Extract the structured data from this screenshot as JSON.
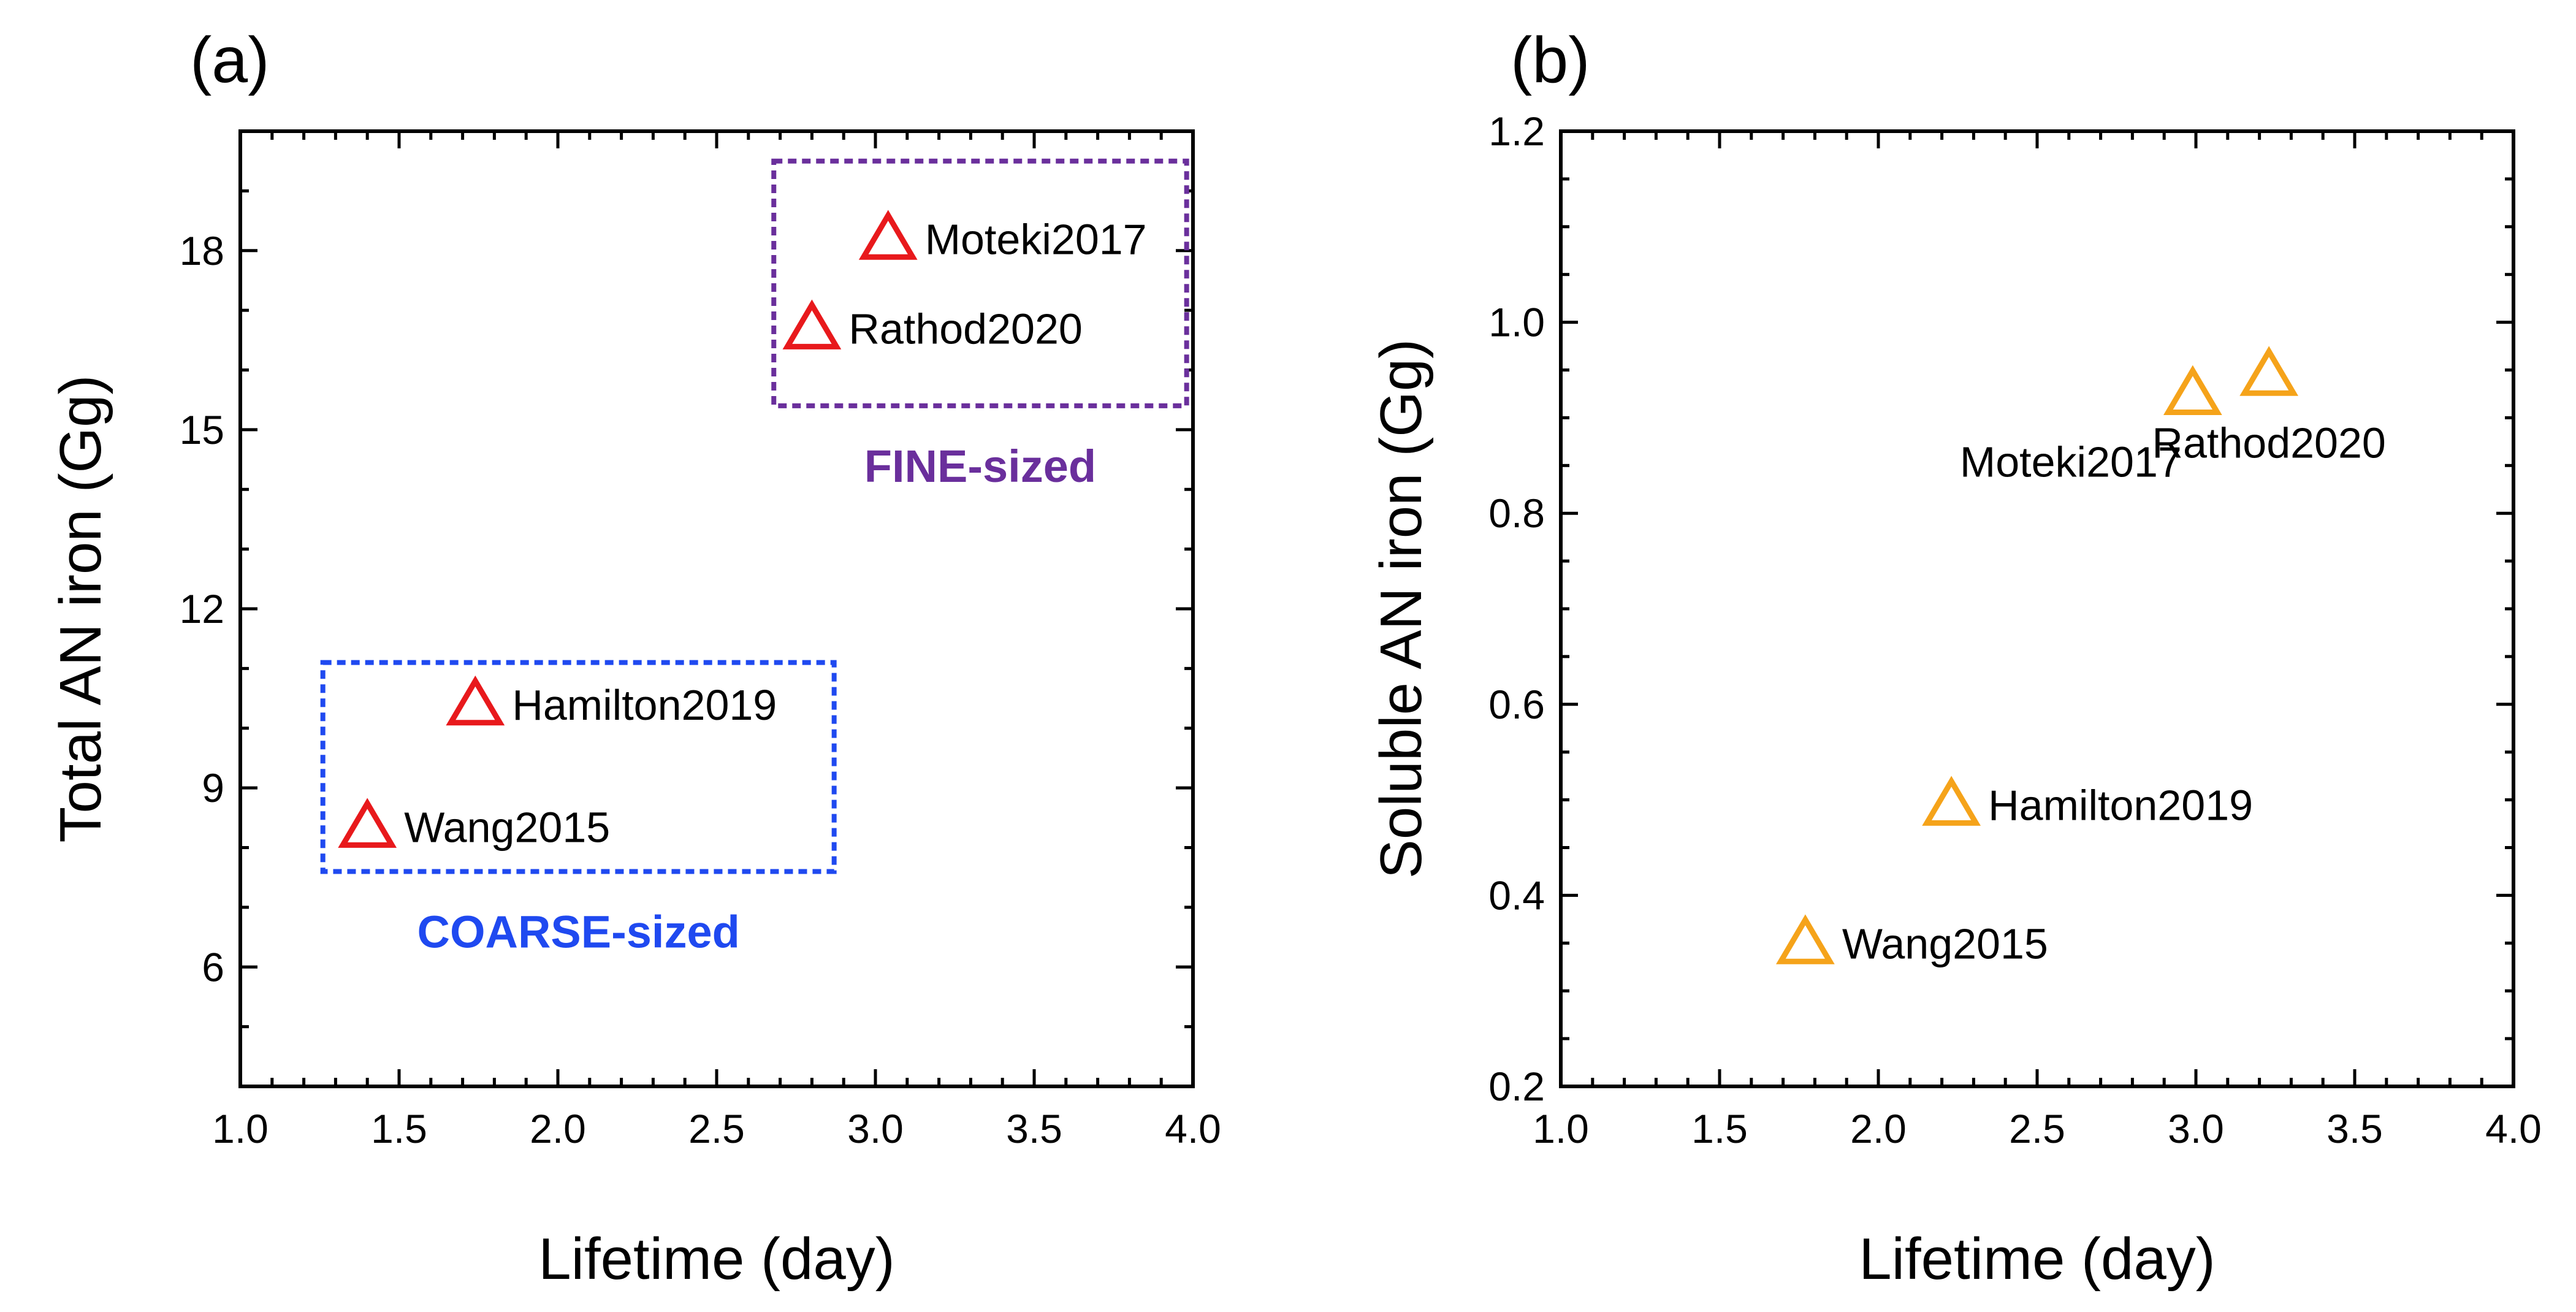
{
  "chart_data": [
    {
      "type": "scatter",
      "panel_label": "(a)",
      "xlabel": "Lifetime (day)",
      "ylabel": "Total AN iron (Gg)",
      "xlim": [
        1.0,
        4.0
      ],
      "ylim": [
        4.0,
        20.0
      ],
      "xticks": [
        1.0,
        1.5,
        2.0,
        2.5,
        3.0,
        3.5,
        4.0
      ],
      "xtick_labels": [
        "1.0",
        "1.5",
        "2.0",
        "2.5",
        "3.0",
        "3.5",
        "4.0"
      ],
      "yticks": [
        6,
        9,
        12,
        15,
        18
      ],
      "ytick_labels": [
        "6",
        "9",
        "12",
        "15",
        "18"
      ],
      "marker": "open-triangle",
      "marker_color": "#e8191c",
      "points": [
        {
          "label": "Moteki2017",
          "x": 3.04,
          "y": 18.2,
          "label_pos": "right"
        },
        {
          "label": "Rathod2020",
          "x": 2.8,
          "y": 16.7,
          "label_pos": "right"
        },
        {
          "label": "Hamilton2019",
          "x": 1.74,
          "y": 10.4,
          "label_pos": "right"
        },
        {
          "label": "Wang2015",
          "x": 1.4,
          "y": 8.35,
          "label_pos": "right"
        }
      ],
      "groups": [
        {
          "label": "FINE-sized",
          "color": "#6a2f9c",
          "x_range": [
            2.68,
            3.98
          ],
          "y_range": [
            15.4,
            19.5
          ],
          "label_pos": "below"
        },
        {
          "label": "COARSE-sized",
          "color": "#1f49f0",
          "x_range": [
            1.26,
            2.87
          ],
          "y_range": [
            7.6,
            11.1
          ],
          "label_pos": "below"
        }
      ]
    },
    {
      "type": "scatter",
      "panel_label": "(b)",
      "xlabel": "Lifetime (day)",
      "ylabel": "Soluble AN iron (Gg)",
      "xlim": [
        1.0,
        4.0
      ],
      "ylim": [
        0.2,
        1.2
      ],
      "xticks": [
        1.0,
        1.5,
        2.0,
        2.5,
        3.0,
        3.5,
        4.0
      ],
      "xtick_labels": [
        "1.0",
        "1.5",
        "2.0",
        "2.5",
        "3.0",
        "3.5",
        "4.0"
      ],
      "yticks": [
        0.2,
        0.4,
        0.6,
        0.8,
        1.0,
        1.2
      ],
      "ytick_labels": [
        "0.2",
        "0.4",
        "0.6",
        "0.8",
        "1.0",
        "1.2"
      ],
      "marker": "open-triangle",
      "marker_color": "#f5a31a",
      "points": [
        {
          "label": "Moteki2017",
          "x": 2.99,
          "y": 0.925,
          "label_pos": "below-left"
        },
        {
          "label": "Rathod2020",
          "x": 3.23,
          "y": 0.945,
          "label_pos": "below"
        },
        {
          "label": "Hamilton2019",
          "x": 2.23,
          "y": 0.495,
          "label_pos": "right"
        },
        {
          "label": "Wang2015",
          "x": 1.77,
          "y": 0.35,
          "label_pos": "right"
        }
      ],
      "groups": []
    }
  ]
}
